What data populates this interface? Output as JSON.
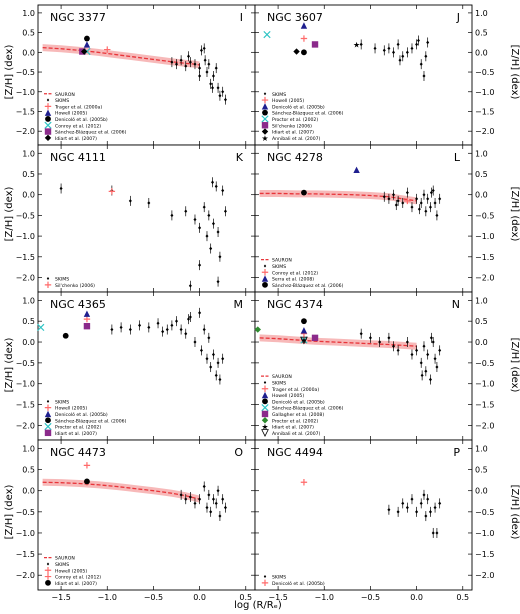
{
  "figure": {
    "xlabel": "log (R/Rₑ)",
    "ylabel": "[Z/H] (dex)",
    "x_ticks": [
      -1.5,
      -1.0,
      -0.5,
      0.0,
      0.5
    ],
    "x_tick_labels": [
      "−1.5",
      "−1.0",
      "−0.5",
      "0.0",
      "0.5"
    ],
    "y_ticks": [
      1.0,
      0.5,
      0.0,
      -0.5,
      -1.0,
      -1.5,
      -2.0
    ],
    "y_tick_labels": [
      "1.0",
      "0.5",
      "0.0",
      "−0.5",
      "−1.0",
      "−1.5",
      "−2.0"
    ],
    "colors": {
      "sauron": "#e8353a",
      "sauron_band": "#f5a8a8",
      "skims": "#000000",
      "howell": "#ff6a6a",
      "trager": "#ff6a6a",
      "conroy": "#ff6a6a",
      "denicolo": "#1f1f8f",
      "sanchez": "#000000",
      "proctor": "#2ec4c4",
      "silchenko": "#8b2a8b",
      "idiart": "#000000",
      "arnaboldi": "#000000",
      "serra": "#1f1f8f",
      "gallagher": "#8b2a8b"
    }
  },
  "chart_data": [
    {
      "type": "scatter",
      "panel": "I",
      "galaxy": "NGC 3377",
      "xlim": [
        -1.75,
        0.6
      ],
      "ylim": [
        -2.35,
        1.2
      ],
      "sauron": {
        "x": [
          -1.7,
          -1.5,
          -1.3,
          -1.1,
          -0.9,
          -0.7,
          -0.5,
          -0.3,
          -0.15,
          -0.05,
          0.0
        ],
        "y": [
          0.12,
          0.09,
          0.05,
          0.0,
          -0.06,
          -0.12,
          -0.18,
          -0.24,
          -0.28,
          -0.3,
          -0.32
        ]
      },
      "skims": {
        "x": [
          -0.3,
          -0.25,
          -0.2,
          -0.15,
          -0.1,
          -0.05,
          0.0,
          0.02,
          0.05,
          0.08,
          0.1,
          0.12,
          0.15,
          0.18,
          0.2,
          0.22,
          0.25,
          0.28,
          -0.12,
          0.0,
          0.06,
          0.14
        ],
        "y": [
          -0.25,
          -0.3,
          -0.2,
          -0.35,
          -0.25,
          -0.3,
          -0.4,
          0.05,
          0.1,
          -0.5,
          -0.3,
          -0.8,
          -0.6,
          -0.4,
          -0.9,
          -1.1,
          -1.0,
          -1.2,
          -0.1,
          -0.6,
          -0.2,
          -0.9
        ]
      },
      "literature": [
        {
          "name": "Trager et al. (2000a)",
          "marker": "plus",
          "color": "#ff6a6a",
          "x": -1.0,
          "y": 0.07
        },
        {
          "name": "Howell (2005)",
          "marker": "triangle",
          "color": "#1f1f8f",
          "x": -1.22,
          "y": 0.2
        },
        {
          "name": "Denicoló et al. (2005b)",
          "marker": "circle",
          "color": "#000000",
          "x": -1.22,
          "y": 0.35
        },
        {
          "name": "Conroy et al. (2012)",
          "marker": "x",
          "color": "#2ec4c4",
          "x": -1.22,
          "y": 0.02
        },
        {
          "name": "Sánchez-Blázquez et al. (2006)",
          "marker": "square",
          "color": "#8b2a8b",
          "x": -1.27,
          "y": 0.02
        },
        {
          "name": "Idiart et al. (2007)",
          "marker": "diamond",
          "color": "#000000",
          "x": -1.25,
          "y": 0.02
        }
      ],
      "legend": [
        "SAURON",
        "SKIMS",
        "Trager et al. (2000a)",
        "Howell (2005)",
        "Denicoló et al. (2005b)",
        "Conroy et al. (2012)",
        "Sánchez-Blázquez et al. (2006)",
        "Idiart et al. (2007)"
      ]
    },
    {
      "type": "scatter",
      "panel": "J",
      "galaxy": "NGC 3607",
      "xlim": [
        -1.75,
        0.6
      ],
      "ylim": [
        -2.35,
        1.2
      ],
      "sauron": null,
      "skims": {
        "x": [
          -0.6,
          -0.45,
          -0.35,
          -0.3,
          -0.25,
          -0.2,
          -0.15,
          -0.1,
          -0.05,
          0.0,
          0.05,
          0.08,
          -0.18,
          0.02,
          0.1,
          0.12
        ],
        "y": [
          0.2,
          0.1,
          0.05,
          0.1,
          0.0,
          0.2,
          -0.1,
          0.0,
          0.1,
          0.2,
          -0.3,
          -0.6,
          -0.2,
          0.3,
          -0.1,
          0.25
        ]
      },
      "literature": [
        {
          "name": "Howell (2005)",
          "marker": "plus",
          "color": "#ff6a6a",
          "x": -1.22,
          "y": 0.35
        },
        {
          "name": "Denicoló et al. (2005b)",
          "marker": "triangle",
          "color": "#1f1f8f",
          "x": -1.22,
          "y": 0.68
        },
        {
          "name": "Sánchez-Blázquez et al. (2006)",
          "marker": "circle",
          "color": "#000000",
          "x": -1.22,
          "y": 0.0
        },
        {
          "name": "Proctor et al. (2002)",
          "marker": "x",
          "color": "#2ec4c4",
          "x": -1.62,
          "y": 0.45
        },
        {
          "name": "Sil'chenko (2006)",
          "marker": "square",
          "color": "#8b2a8b",
          "x": -1.1,
          "y": 0.2
        },
        {
          "name": "Idiart et al. (2007)",
          "marker": "diamond",
          "color": "#000000",
          "x": -1.3,
          "y": 0.02
        },
        {
          "name": "Annibali et al. (2007)",
          "marker": "star",
          "color": "#000000",
          "x": -0.65,
          "y": 0.2
        }
      ],
      "legend": [
        "SKIMS",
        "Howell (2005)",
        "Denicoló et al. (2005b)",
        "Sánchez-Blázquez et al. (2006)",
        "Proctor et al. (2002)",
        "Sil'chenko (2006)",
        "Idiart et al. (2007)",
        "Annibali et al. (2007)"
      ]
    },
    {
      "type": "scatter",
      "panel": "K",
      "galaxy": "NGC 4111",
      "xlim": [
        -1.75,
        0.6
      ],
      "ylim": [
        -2.35,
        1.2
      ],
      "sauron": null,
      "skims": {
        "x": [
          -1.5,
          -0.95,
          -0.75,
          -0.55,
          -0.3,
          -0.15,
          -0.1,
          -0.05,
          0.0,
          0.05,
          0.08,
          0.1,
          0.12,
          0.15,
          0.18,
          0.2,
          0.22,
          0.25,
          0.28,
          0.0,
          0.14,
          0.2
        ],
        "y": [
          0.15,
          0.1,
          -0.15,
          -0.2,
          -0.5,
          -0.4,
          -2.2,
          -0.6,
          -0.8,
          -0.3,
          -1.0,
          -0.5,
          -1.3,
          -0.7,
          0.2,
          -0.9,
          -1.5,
          0.1,
          -0.4,
          -1.7,
          0.3,
          -2.1
        ]
      },
      "literature": [
        {
          "name": "Sil'chenko (2006)",
          "marker": "plus",
          "color": "#ff6a6a",
          "x": -0.95,
          "y": 0.08
        }
      ],
      "legend": [
        "SKIMS",
        "Sil'chenko (2006)"
      ]
    },
    {
      "type": "scatter",
      "panel": "L",
      "galaxy": "NGC 4278",
      "xlim": [
        -1.75,
        0.6
      ],
      "ylim": [
        -2.35,
        1.2
      ],
      "sauron": {
        "x": [
          -1.7,
          -1.5,
          -1.3,
          -1.1,
          -0.9,
          -0.7,
          -0.5,
          -0.3,
          -0.15,
          0.0
        ],
        "y": [
          0.03,
          0.03,
          0.02,
          0.02,
          0.01,
          0.0,
          -0.02,
          -0.05,
          -0.1,
          -0.15
        ]
      },
      "skims": {
        "x": [
          -0.35,
          -0.3,
          -0.25,
          -0.2,
          -0.15,
          -0.1,
          -0.05,
          0.0,
          0.05,
          0.08,
          0.1,
          0.12,
          0.15,
          0.18,
          0.2,
          0.22,
          0.25,
          -0.22,
          0.03,
          0.16
        ],
        "y": [
          -0.05,
          -0.1,
          0.0,
          -0.15,
          -0.2,
          0.05,
          -0.3,
          -0.1,
          -0.2,
          0.0,
          -0.4,
          -0.1,
          -0.3,
          0.1,
          -0.2,
          -0.5,
          -0.1,
          -0.25,
          -0.35,
          0.05
        ]
      },
      "literature": [
        {
          "name": "Conroy et al. (2012)",
          "marker": "plus",
          "color": "#ff6a6a",
          "x": -0.1,
          "y": -0.15
        },
        {
          "name": "Serra et al. (2008)",
          "marker": "triangle",
          "color": "#1f1f8f",
          "x": -0.65,
          "y": 0.6
        },
        {
          "name": "Sánchez-Blázquez et al. (2006)",
          "marker": "circle",
          "color": "#000000",
          "x": -1.22,
          "y": 0.05
        }
      ],
      "legend": [
        "SAURON",
        "SKIMS",
        "Conroy et al. (2012)",
        "Serra et al. (2008)",
        "Sánchez-Blázquez et al. (2006)"
      ]
    },
    {
      "type": "scatter",
      "panel": "M",
      "galaxy": "NGC 4365",
      "xlim": [
        -1.75,
        0.6
      ],
      "ylim": [
        -2.35,
        1.2
      ],
      "sauron": null,
      "skims": {
        "x": [
          -0.95,
          -0.85,
          -0.75,
          -0.65,
          -0.55,
          -0.45,
          -0.35,
          -0.3,
          -0.25,
          -0.2,
          -0.15,
          -0.1,
          -0.05,
          0.0,
          0.02,
          0.05,
          0.08,
          0.1,
          0.12,
          0.15,
          0.18,
          0.2,
          0.22,
          0.25,
          -0.4,
          -0.12
        ],
        "y": [
          0.3,
          0.35,
          0.3,
          0.4,
          0.35,
          0.45,
          0.3,
          0.4,
          0.5,
          0.3,
          0.2,
          0.6,
          0.0,
          0.7,
          -0.2,
          0.3,
          -0.4,
          0.1,
          -0.6,
          -0.3,
          -0.8,
          -0.5,
          -0.9,
          -0.4,
          0.25,
          0.55
        ]
      },
      "literature": [
        {
          "name": "Howell (2005)",
          "marker": "plus",
          "color": "#ff6a6a",
          "x": -1.22,
          "y": 0.55
        },
        {
          "name": "Denicoló et al. (2005b)",
          "marker": "triangle",
          "color": "#1f1f8f",
          "x": -1.22,
          "y": 0.68
        },
        {
          "name": "Sánchez-Blázquez et al. (2006)",
          "marker": "circle",
          "color": "#000000",
          "x": -1.45,
          "y": 0.15
        },
        {
          "name": "Proctor et al. (2002)",
          "marker": "x",
          "color": "#2ec4c4",
          "x": -1.72,
          "y": 0.35
        },
        {
          "name": "Idiart et al. (2007)",
          "marker": "square",
          "color": "#8b2a8b",
          "x": -1.22,
          "y": 0.38
        }
      ],
      "legend": [
        "SKIMS",
        "Howell (2005)",
        "Denicoló et al. (2005b)",
        "Sánchez-Blázquez et al. (2006)",
        "Proctor et al. (2002)",
        "Idiart et al. (2007)"
      ]
    },
    {
      "type": "scatter",
      "panel": "N",
      "galaxy": "NGC 4374",
      "xlim": [
        -1.75,
        0.6
      ],
      "ylim": [
        -2.35,
        1.2
      ],
      "sauron": {
        "x": [
          -1.7,
          -1.5,
          -1.3,
          -1.1,
          -0.9,
          -0.7,
          -0.5,
          -0.3,
          -0.15,
          0.0
        ],
        "y": [
          0.1,
          0.08,
          0.05,
          0.02,
          0.0,
          -0.02,
          -0.04,
          -0.06,
          -0.08,
          -0.1
        ]
      },
      "skims": {
        "x": [
          -0.6,
          -0.5,
          -0.4,
          -0.3,
          -0.2,
          -0.1,
          -0.05,
          0.0,
          0.05,
          0.08,
          0.1,
          0.12,
          0.15,
          0.18,
          0.2,
          0.22,
          0.25,
          -0.25,
          0.06,
          0.16
        ],
        "y": [
          0.2,
          0.1,
          0.0,
          0.1,
          -0.2,
          0.0,
          -0.3,
          -0.2,
          -0.5,
          -0.1,
          -0.7,
          -0.3,
          -0.9,
          0.0,
          -0.4,
          -0.6,
          -0.2,
          -0.1,
          -0.8,
          0.1
        ]
      },
      "literature": [
        {
          "name": "Trager et al. (2000a)",
          "marker": "plus",
          "color": "#ff6a6a",
          "x": -1.22,
          "y": 0.2
        },
        {
          "name": "Howell (2005)",
          "marker": "triangle",
          "color": "#1f1f8f",
          "x": -1.22,
          "y": 0.28
        },
        {
          "name": "Denicoló et al. (2005b)",
          "marker": "circle",
          "color": "#000000",
          "x": -1.22,
          "y": 0.5
        },
        {
          "name": "Sánchez-Blázquez et al. (2006)",
          "marker": "x",
          "color": "#2ec4c4",
          "x": -1.22,
          "y": 0.05
        },
        {
          "name": "Gallagher et al. (2008)",
          "marker": "square",
          "color": "#8b2a8b",
          "x": -1.1,
          "y": 0.1
        },
        {
          "name": "Proctor et al. (2002)",
          "marker": "diamond",
          "color": "#2e8b2e",
          "x": -1.72,
          "y": 0.3
        },
        {
          "name": "Idiart et al. (2007)",
          "marker": "star",
          "color": "#000000",
          "x": -1.22,
          "y": 0.05
        },
        {
          "name": "Annibali et al. (2007)",
          "marker": "tri_down",
          "color": "#000000",
          "x": -1.22,
          "y": 0.04
        }
      ],
      "legend": [
        "SAURON",
        "SKIMS",
        "Trager et al. (2000a)",
        "Howell (2005)",
        "Denicoló et al. (2005b)",
        "Sánchez-Blázquez et al. (2006)",
        "Gallagher et al. (2008)",
        "Proctor et al. (2002)",
        "Idiart et al. (2007)",
        "Annibali et al. (2007)"
      ]
    },
    {
      "type": "scatter",
      "panel": "O",
      "galaxy": "NGC 4473",
      "xlim": [
        -1.75,
        0.6
      ],
      "ylim": [
        -2.35,
        1.2
      ],
      "sauron": {
        "x": [
          -1.7,
          -1.5,
          -1.3,
          -1.1,
          -0.9,
          -0.7,
          -0.5,
          -0.3,
          -0.15,
          0.0
        ],
        "y": [
          0.2,
          0.19,
          0.17,
          0.14,
          0.1,
          0.05,
          0.0,
          -0.06,
          -0.12,
          -0.2
        ]
      },
      "skims": {
        "x": [
          -0.2,
          -0.15,
          -0.1,
          -0.05,
          0.0,
          0.05,
          0.08,
          0.1,
          0.12,
          0.15,
          0.18,
          0.2,
          0.22,
          0.25,
          0.28
        ],
        "y": [
          -0.1,
          -0.2,
          -0.15,
          -0.3,
          -0.2,
          0.1,
          -0.4,
          -0.1,
          -0.5,
          -0.2,
          -0.3,
          0.0,
          -0.6,
          -0.2,
          -0.4
        ]
      },
      "literature": [
        {
          "name": "Howell (2005)",
          "marker": "plus",
          "color": "#ff6a6a",
          "x": -1.22,
          "y": 0.6
        },
        {
          "name": "Conroy et al. (2012)",
          "marker": "plus",
          "color": "#ff6a6a",
          "x": -1.22,
          "y": 0.2
        },
        {
          "name": "Idiart et al. (2007)",
          "marker": "circle",
          "color": "#000000",
          "x": -1.22,
          "y": 0.22
        }
      ],
      "legend": [
        "SAURON",
        "SKIMS",
        "Howell (2005)",
        "Conroy et al. (2012)",
        "Idiart et al. (2007)"
      ]
    },
    {
      "type": "scatter",
      "panel": "P",
      "galaxy": "NGC 4494",
      "xlim": [
        -1.75,
        0.6
      ],
      "ylim": [
        -2.35,
        1.2
      ],
      "sauron": null,
      "skims": {
        "x": [
          -0.3,
          -0.2,
          -0.15,
          -0.1,
          -0.05,
          0.0,
          0.05,
          0.08,
          0.1,
          0.12,
          0.15,
          0.18,
          0.2,
          0.22,
          0.25
        ],
        "y": [
          -0.45,
          -0.5,
          -0.3,
          -0.4,
          -0.2,
          -0.5,
          -0.3,
          -0.1,
          -0.6,
          -0.2,
          -0.5,
          -1.0,
          -0.4,
          -1.0,
          -0.3
        ]
      },
      "literature": [
        {
          "name": "Denicoló et al. (2005b)",
          "marker": "plus",
          "color": "#ff6a6a",
          "x": -1.22,
          "y": 0.2
        }
      ],
      "legend": [
        "SKIMS",
        "Denicoló et al. (2005b)"
      ]
    }
  ]
}
